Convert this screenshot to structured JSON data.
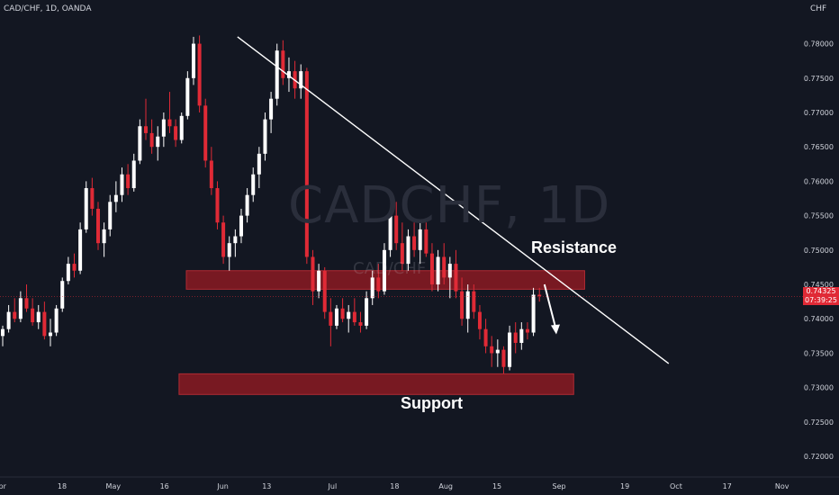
{
  "header": {
    "symbol": "CAD/CHF, 1D, OANDA",
    "currency": "CHF",
    "watermark": "CADCHF, 1D",
    "watermark_sub": "CAD/CHF"
  },
  "annotations": {
    "resistance": "Resistance",
    "support": "Support"
  },
  "price_tag": {
    "price": "0.74325",
    "countdown": "07:39:25"
  },
  "colors": {
    "background": "#131722",
    "up": "#ffffff",
    "down": "#e02a36",
    "zone": "#8b1a22",
    "text": "#d1d4dc"
  },
  "chart_data": {
    "type": "candlestick",
    "ylim": [
      0.717,
      0.784
    ],
    "y_ticks": [
      "0.78000",
      "0.77500",
      "0.77000",
      "0.76500",
      "0.76000",
      "0.75500",
      "0.75000",
      "0.74500",
      "0.74000",
      "0.73500",
      "0.73000",
      "0.72500",
      "0.72000"
    ],
    "x_ticks": [
      "Apr",
      "18",
      "May",
      "16",
      "Jun",
      "13",
      "Jul",
      "18",
      "Aug",
      "15",
      "Sep",
      "19",
      "Oct",
      "17",
      "Nov"
    ],
    "first_date": "2022-04-01",
    "x_tick_dates": [
      "2022-04-01",
      "2022-04-18",
      "2022-05-02",
      "2022-05-16",
      "2022-06-01",
      "2022-06-13",
      "2022-07-01",
      "2022-07-18",
      "2022-08-01",
      "2022-08-15",
      "2022-09-01",
      "2022-09-19",
      "2022-10-03",
      "2022-10-17",
      "2022-11-01"
    ],
    "x_end_date": "2022-11-07",
    "candles": [
      [
        0.7375,
        0.739,
        0.736,
        0.7385
      ],
      [
        0.7385,
        0.742,
        0.738,
        0.741
      ],
      [
        0.741,
        0.743,
        0.7395,
        0.74
      ],
      [
        0.74,
        0.744,
        0.7395,
        0.743
      ],
      [
        0.743,
        0.745,
        0.741,
        0.7415
      ],
      [
        0.7415,
        0.743,
        0.739,
        0.7395
      ],
      [
        0.7395,
        0.742,
        0.7385,
        0.741
      ],
      [
        0.741,
        0.7425,
        0.737,
        0.7375
      ],
      [
        0.7375,
        0.74,
        0.736,
        0.738
      ],
      [
        0.738,
        0.742,
        0.7375,
        0.7415
      ],
      [
        0.7415,
        0.746,
        0.741,
        0.7455
      ],
      [
        0.7455,
        0.749,
        0.745,
        0.748
      ],
      [
        0.748,
        0.7495,
        0.746,
        0.747
      ],
      [
        0.747,
        0.754,
        0.7465,
        0.753
      ],
      [
        0.753,
        0.76,
        0.7525,
        0.759
      ],
      [
        0.759,
        0.7605,
        0.755,
        0.756
      ],
      [
        0.756,
        0.757,
        0.75,
        0.751
      ],
      [
        0.751,
        0.754,
        0.749,
        0.753
      ],
      [
        0.753,
        0.758,
        0.752,
        0.757
      ],
      [
        0.757,
        0.76,
        0.7555,
        0.758
      ],
      [
        0.758,
        0.762,
        0.757,
        0.761
      ],
      [
        0.761,
        0.7625,
        0.758,
        0.759
      ],
      [
        0.759,
        0.764,
        0.7585,
        0.763
      ],
      [
        0.763,
        0.769,
        0.7625,
        0.768
      ],
      [
        0.768,
        0.772,
        0.766,
        0.767
      ],
      [
        0.767,
        0.769,
        0.764,
        0.765
      ],
      [
        0.765,
        0.768,
        0.763,
        0.7665
      ],
      [
        0.7665,
        0.77,
        0.765,
        0.769
      ],
      [
        0.769,
        0.773,
        0.767,
        0.768
      ],
      [
        0.768,
        0.769,
        0.765,
        0.766
      ],
      [
        0.766,
        0.77,
        0.7655,
        0.7695
      ],
      [
        0.7695,
        0.776,
        0.769,
        0.775
      ],
      [
        0.775,
        0.781,
        0.774,
        0.78
      ],
      [
        0.78,
        0.7812,
        0.77,
        0.771
      ],
      [
        0.771,
        0.772,
        0.762,
        0.763
      ],
      [
        0.763,
        0.765,
        0.758,
        0.759
      ],
      [
        0.759,
        0.76,
        0.753,
        0.754
      ],
      [
        0.754,
        0.755,
        0.748,
        0.749
      ],
      [
        0.749,
        0.752,
        0.747,
        0.751
      ],
      [
        0.751,
        0.753,
        0.749,
        0.752
      ],
      [
        0.752,
        0.756,
        0.751,
        0.755
      ],
      [
        0.755,
        0.759,
        0.754,
        0.758
      ],
      [
        0.758,
        0.762,
        0.757,
        0.761
      ],
      [
        0.761,
        0.765,
        0.759,
        0.764
      ],
      [
        0.764,
        0.77,
        0.763,
        0.769
      ],
      [
        0.769,
        0.773,
        0.767,
        0.772
      ],
      [
        0.772,
        0.78,
        0.771,
        0.779
      ],
      [
        0.779,
        0.7805,
        0.774,
        0.775
      ],
      [
        0.775,
        0.778,
        0.773,
        0.776
      ],
      [
        0.776,
        0.7775,
        0.772,
        0.7735
      ],
      [
        0.7735,
        0.777,
        0.772,
        0.776
      ],
      [
        0.776,
        0.7765,
        0.748,
        0.749
      ],
      [
        0.749,
        0.75,
        0.742,
        0.744
      ],
      [
        0.744,
        0.748,
        0.743,
        0.747
      ],
      [
        0.747,
        0.7475,
        0.74,
        0.741
      ],
      [
        0.741,
        0.743,
        0.736,
        0.739
      ],
      [
        0.739,
        0.742,
        0.7385,
        0.7415
      ],
      [
        0.7415,
        0.743,
        0.7395,
        0.74
      ],
      [
        0.74,
        0.742,
        0.738,
        0.741
      ],
      [
        0.741,
        0.743,
        0.739,
        0.7395
      ],
      [
        0.7395,
        0.741,
        0.738,
        0.739
      ],
      [
        0.739,
        0.744,
        0.7385,
        0.743
      ],
      [
        0.743,
        0.747,
        0.742,
        0.746
      ],
      [
        0.746,
        0.748,
        0.743,
        0.744
      ],
      [
        0.744,
        0.751,
        0.7435,
        0.75
      ],
      [
        0.75,
        0.756,
        0.749,
        0.755
      ],
      [
        0.755,
        0.757,
        0.75,
        0.751
      ],
      [
        0.751,
        0.754,
        0.747,
        0.748
      ],
      [
        0.748,
        0.753,
        0.747,
        0.752
      ],
      [
        0.752,
        0.754,
        0.749,
        0.75
      ],
      [
        0.75,
        0.754,
        0.748,
        0.753
      ],
      [
        0.753,
        0.754,
        0.749,
        0.7495
      ],
      [
        0.7495,
        0.751,
        0.744,
        0.745
      ],
      [
        0.745,
        0.75,
        0.744,
        0.749
      ],
      [
        0.749,
        0.751,
        0.745,
        0.746
      ],
      [
        0.746,
        0.749,
        0.743,
        0.748
      ],
      [
        0.748,
        0.75,
        0.743,
        0.744
      ],
      [
        0.744,
        0.746,
        0.739,
        0.74
      ],
      [
        0.74,
        0.745,
        0.738,
        0.744
      ],
      [
        0.744,
        0.745,
        0.74,
        0.741
      ],
      [
        0.741,
        0.742,
        0.737,
        0.7385
      ],
      [
        0.7385,
        0.74,
        0.735,
        0.736
      ],
      [
        0.736,
        0.7375,
        0.733,
        0.735
      ],
      [
        0.735,
        0.737,
        0.733,
        0.7355
      ],
      [
        0.7355,
        0.736,
        0.732,
        0.733
      ],
      [
        0.733,
        0.739,
        0.7325,
        0.738
      ],
      [
        0.738,
        0.7395,
        0.735,
        0.7365
      ],
      [
        0.7365,
        0.7395,
        0.7355,
        0.7385
      ],
      [
        0.7385,
        0.7395,
        0.737,
        0.738
      ],
      [
        0.738,
        0.7445,
        0.7375,
        0.7435
      ],
      [
        0.7435,
        0.7445,
        0.7425,
        0.7433
      ]
    ],
    "zones": [
      {
        "label": "Resistance",
        "from": 0.7443,
        "to": 0.747,
        "x_start": "2022-05-22",
        "x_end": "2022-09-08"
      },
      {
        "label": "Support",
        "from": 0.729,
        "to": 0.732,
        "x_start": "2022-05-20",
        "x_end": "2022-09-05"
      }
    ],
    "trendline": {
      "from": [
        "2022-06-05",
        0.781
      ],
      "to": [
        "2022-10-01",
        0.7335
      ]
    },
    "arrow": {
      "from": [
        "2022-08-28",
        0.745
      ],
      "to": [
        "2022-08-31",
        0.738
      ]
    }
  }
}
